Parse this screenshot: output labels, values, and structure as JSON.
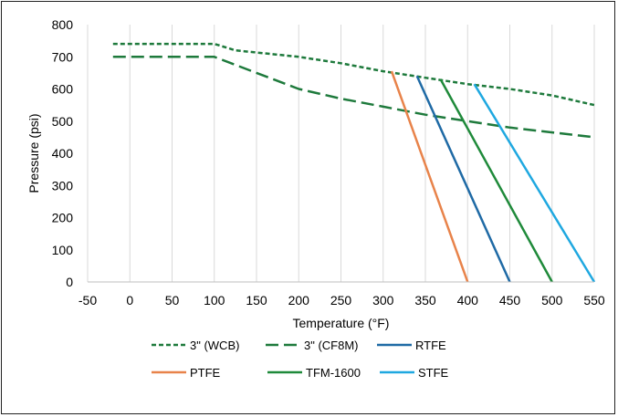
{
  "chart_data": {
    "type": "line",
    "xlabel": "Temperature (°F)",
    "ylabel": "Pressure (psi)",
    "xlim": [
      -50,
      550
    ],
    "ylim": [
      0,
      800
    ],
    "xticks": [
      -50,
      0,
      50,
      100,
      150,
      200,
      250,
      300,
      350,
      400,
      450,
      500,
      550
    ],
    "yticks": [
      0,
      100,
      200,
      300,
      400,
      500,
      600,
      700,
      800
    ],
    "grid": "vertical",
    "legend_position": "bottom",
    "series": [
      {
        "name": "3\" (WCB)",
        "color": "#1e7a3c",
        "dash": "short-dash",
        "points": [
          [
            -20,
            740
          ],
          [
            100,
            740
          ],
          [
            125,
            720
          ],
          [
            200,
            700
          ],
          [
            250,
            680
          ],
          [
            300,
            655
          ],
          [
            350,
            635
          ],
          [
            400,
            615
          ],
          [
            450,
            600
          ],
          [
            500,
            580
          ],
          [
            550,
            550
          ]
        ]
      },
      {
        "name": "3\" (CF8M)",
        "color": "#1e7a3c",
        "dash": "long-dash",
        "points": [
          [
            -20,
            700
          ],
          [
            100,
            700
          ],
          [
            150,
            650
          ],
          [
            200,
            600
          ],
          [
            250,
            570
          ],
          [
            300,
            545
          ],
          [
            350,
            520
          ],
          [
            400,
            500
          ],
          [
            450,
            480
          ],
          [
            500,
            465
          ],
          [
            550,
            450
          ]
        ]
      },
      {
        "name": "RTFE",
        "color": "#1f6aa5",
        "dash": "solid",
        "points": [
          [
            340,
            640
          ],
          [
            450,
            0
          ]
        ]
      },
      {
        "name": "PTFE",
        "color": "#e8834a",
        "dash": "solid",
        "points": [
          [
            310,
            655
          ],
          [
            400,
            0
          ]
        ]
      },
      {
        "name": "TFM-1600",
        "color": "#1f8a3a",
        "dash": "solid",
        "points": [
          [
            368,
            630
          ],
          [
            500,
            0
          ]
        ]
      },
      {
        "name": "STFE",
        "color": "#1fa8e0",
        "dash": "solid",
        "points": [
          [
            408,
            615
          ],
          [
            550,
            0
          ]
        ]
      }
    ]
  }
}
